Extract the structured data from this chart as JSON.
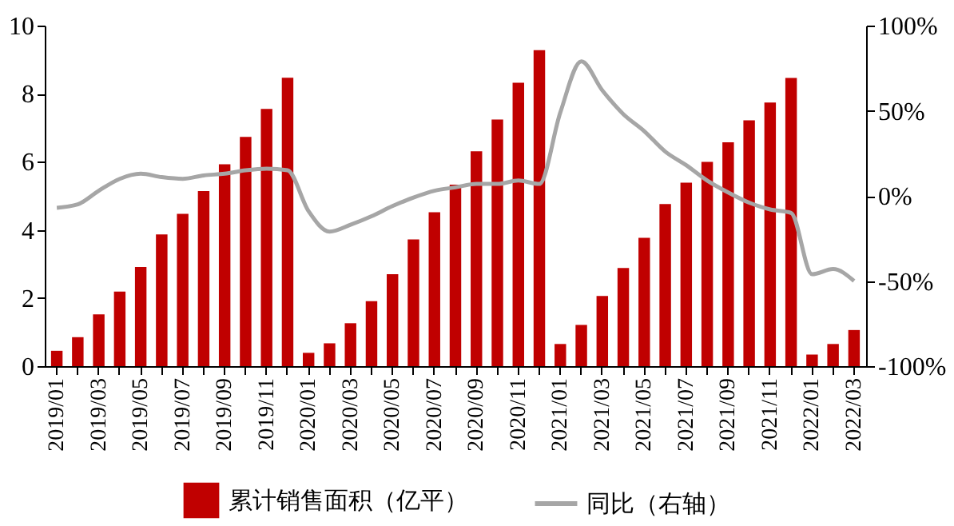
{
  "chart_data": {
    "type": "bar",
    "categories": [
      "2019/01",
      null,
      "2019/03",
      null,
      "2019/05",
      null,
      "2019/07",
      null,
      "2019/09",
      null,
      "2019/11",
      null,
      "2020/01",
      null,
      "2020/03",
      null,
      "2020/05",
      null,
      "2020/07",
      null,
      "2020/09",
      null,
      "2020/11",
      null,
      "2021/01",
      null,
      "2021/03",
      null,
      "2021/05",
      null,
      "2021/07",
      null,
      "2021/09",
      null,
      "2021/11",
      null,
      "2022/01",
      null,
      "2022/03"
    ],
    "series": [
      {
        "name": "累计销售面积（亿平）",
        "color": "#c00000",
        "values": [
          0.45,
          0.85,
          1.52,
          2.19,
          2.91,
          3.87,
          4.47,
          5.14,
          5.93,
          6.73,
          7.55,
          8.47,
          0.39,
          0.67,
          1.26,
          1.91,
          2.7,
          3.72,
          4.52,
          5.33,
          6.31,
          7.24,
          8.32,
          9.28,
          0.65,
          1.21,
          2.06,
          2.88,
          3.77,
          4.76,
          5.39,
          6.0,
          6.57,
          7.22,
          7.74,
          8.46,
          0.34,
          0.65,
          1.06
        ]
      },
      {
        "name": "同比（右轴）",
        "type": "line",
        "axis": "y2",
        "color": "#a6a6a6",
        "values": [
          -7,
          -5,
          3,
          10,
          13,
          11,
          10,
          12,
          13,
          15,
          16,
          15,
          -9,
          -21,
          -17,
          -12,
          -6,
          -1,
          3,
          5,
          7,
          7,
          9,
          7,
          49,
          79,
          62,
          48,
          38,
          26,
          18,
          9,
          2,
          -4,
          -8,
          -10,
          -46,
          -43,
          -50
        ]
      }
    ],
    "ylim": [
      0,
      10
    ],
    "yticks": [
      0,
      2,
      4,
      6,
      8,
      10
    ],
    "y2lim": [
      -100,
      100
    ],
    "y2ticks": [
      {
        "value": -100,
        "label": "-100%"
      },
      {
        "value": -50,
        "label": "-50%"
      },
      {
        "value": 0,
        "label": "0%"
      },
      {
        "value": 50,
        "label": "50%"
      },
      {
        "value": 100,
        "label": "100%"
      }
    ],
    "legend": "bottom",
    "grid": false
  }
}
